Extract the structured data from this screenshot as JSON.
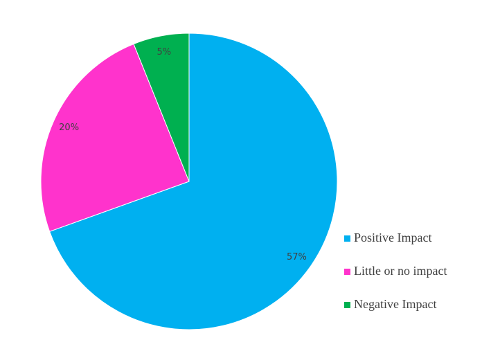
{
  "chart_data": {
    "type": "pie",
    "categories": [
      "Positive Impact",
      "Little or no impact",
      "Negative Impact"
    ],
    "values": [
      57,
      20,
      5
    ],
    "value_labels": [
      "57%",
      "20%",
      "5%"
    ],
    "colors": [
      "#00b0f0",
      "#ff33cc",
      "#00b050"
    ],
    "legend": "right"
  }
}
